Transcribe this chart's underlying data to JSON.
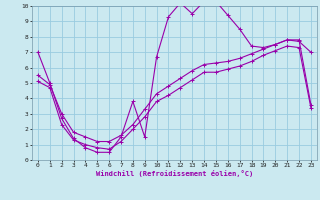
{
  "xlabel": "Windchill (Refroidissement éolien,°C)",
  "bg_color": "#cbe9f0",
  "line_color": "#9900aa",
  "grid_color": "#99cce0",
  "xlim": [
    -0.5,
    23.5
  ],
  "ylim": [
    0,
    10
  ],
  "xticks": [
    0,
    1,
    2,
    3,
    4,
    5,
    6,
    7,
    8,
    9,
    10,
    11,
    12,
    13,
    14,
    15,
    16,
    17,
    18,
    19,
    20,
    21,
    22,
    23
  ],
  "yticks": [
    0,
    1,
    2,
    3,
    4,
    5,
    6,
    7,
    8,
    9,
    10
  ],
  "curve1_x": [
    0,
    1,
    2,
    3,
    4,
    5,
    6,
    7,
    8,
    9,
    10,
    11,
    12,
    13,
    14,
    15,
    16,
    17,
    18,
    19,
    20,
    21,
    22,
    23
  ],
  "curve1_y": [
    7.0,
    5.0,
    2.7,
    1.4,
    0.8,
    0.5,
    0.5,
    1.5,
    3.8,
    1.5,
    6.7,
    9.3,
    10.2,
    9.5,
    10.3,
    10.3,
    9.4,
    8.5,
    7.4,
    7.3,
    7.5,
    7.8,
    7.7,
    7.0
  ],
  "curve2_x": [
    0,
    1,
    2,
    3,
    4,
    5,
    6,
    7,
    8,
    9,
    10,
    11,
    12,
    13,
    14,
    15,
    16,
    17,
    18,
    19,
    20,
    21,
    22,
    23
  ],
  "curve2_y": [
    5.5,
    4.9,
    3.0,
    1.8,
    1.5,
    1.2,
    1.2,
    1.6,
    2.3,
    3.3,
    4.3,
    4.8,
    5.3,
    5.8,
    6.2,
    6.3,
    6.4,
    6.6,
    6.9,
    7.2,
    7.5,
    7.8,
    7.8,
    3.6
  ],
  "curve3_x": [
    0,
    1,
    2,
    3,
    4,
    5,
    6,
    7,
    8,
    9,
    10,
    11,
    12,
    13,
    14,
    15,
    16,
    17,
    18,
    19,
    20,
    21,
    22,
    23
  ],
  "curve3_y": [
    5.1,
    4.7,
    2.3,
    1.3,
    1.0,
    0.8,
    0.7,
    1.2,
    2.0,
    2.8,
    3.8,
    4.2,
    4.7,
    5.2,
    5.7,
    5.7,
    5.9,
    6.1,
    6.4,
    6.8,
    7.1,
    7.4,
    7.3,
    3.4
  ]
}
